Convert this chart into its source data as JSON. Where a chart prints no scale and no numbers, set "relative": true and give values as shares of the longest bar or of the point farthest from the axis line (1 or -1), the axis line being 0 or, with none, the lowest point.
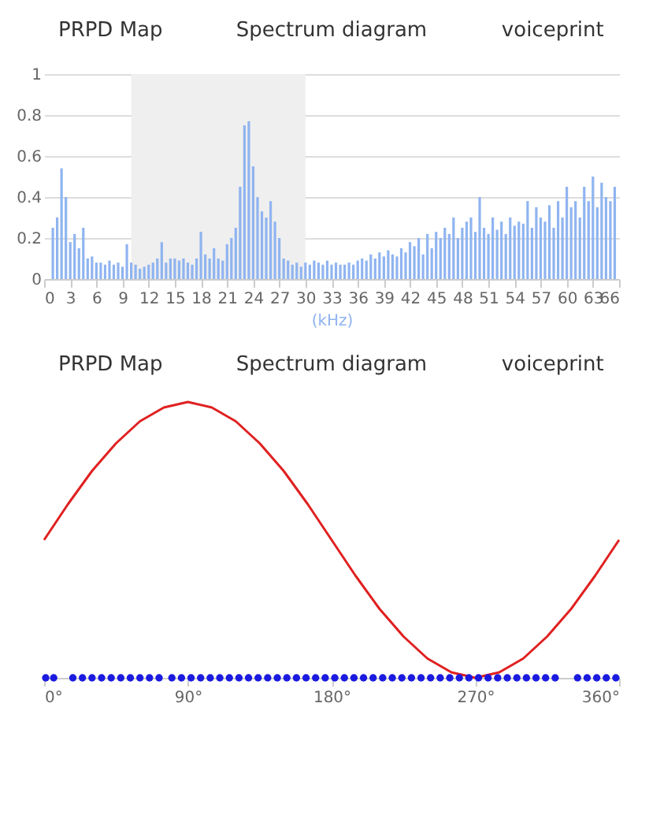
{
  "chart_data": [
    {
      "type": "bar",
      "annotations": [
        "PRPD Map",
        "Spectrum diagram",
        "voiceprint"
      ],
      "xlabel": "(kHz)",
      "x": [
        1.0,
        1.5,
        2.0,
        2.5,
        3.0,
        3.5,
        4.0,
        4.5,
        5.0,
        5.5,
        6.0,
        6.5,
        7.0,
        7.5,
        8.0,
        8.5,
        9.0,
        9.5,
        10.0,
        10.5,
        11.0,
        11.5,
        12.0,
        12.5,
        13.0,
        13.5,
        14.0,
        14.5,
        15.0,
        15.5,
        16.0,
        16.5,
        17.0,
        17.5,
        18.0,
        18.5,
        19.0,
        19.5,
        20.0,
        20.5,
        21.0,
        21.5,
        22.0,
        22.5,
        23.0,
        23.5,
        24.0,
        24.5,
        25.0,
        25.5,
        26.0,
        26.5,
        27.0,
        27.5,
        28.0,
        28.5,
        29.0,
        29.5,
        30.0,
        30.5,
        31.0,
        31.5,
        32.0,
        32.5,
        33.0,
        33.5,
        34.0,
        34.5,
        35.0,
        35.5,
        36.0,
        36.5,
        37.0,
        37.5,
        38.0,
        38.5,
        39.0,
        39.5,
        40.0,
        40.5,
        41.0,
        41.5,
        42.0,
        42.5,
        43.0,
        43.5,
        44.0,
        44.5,
        45.0,
        45.5,
        46.0,
        46.5,
        47.0,
        47.5,
        48.0,
        48.5,
        49.0,
        49.5,
        50.0,
        50.5,
        51.0,
        51.5,
        52.0,
        52.5,
        53.0,
        53.5,
        54.0,
        54.5,
        55.0,
        55.5,
        56.0,
        56.5,
        57.0,
        57.5,
        58.0,
        58.5,
        59.0,
        59.5,
        60.0,
        60.5,
        61.0,
        61.5,
        62.0,
        62.5,
        63.0,
        63.5,
        64.0,
        64.5,
        65.0,
        65.5
      ],
      "values": [
        0.25,
        0.3,
        0.54,
        0.4,
        0.18,
        0.22,
        0.15,
        0.25,
        0.1,
        0.11,
        0.08,
        0.08,
        0.07,
        0.09,
        0.07,
        0.08,
        0.06,
        0.17,
        0.08,
        0.07,
        0.05,
        0.06,
        0.07,
        0.08,
        0.1,
        0.18,
        0.08,
        0.1,
        0.1,
        0.09,
        0.1,
        0.08,
        0.07,
        0.1,
        0.23,
        0.12,
        0.1,
        0.15,
        0.1,
        0.09,
        0.17,
        0.2,
        0.25,
        0.45,
        0.75,
        0.77,
        0.55,
        0.4,
        0.33,
        0.3,
        0.38,
        0.28,
        0.2,
        0.1,
        0.09,
        0.07,
        0.08,
        0.06,
        0.08,
        0.07,
        0.09,
        0.08,
        0.07,
        0.09,
        0.07,
        0.08,
        0.07,
        0.07,
        0.08,
        0.07,
        0.09,
        0.1,
        0.09,
        0.12,
        0.1,
        0.13,
        0.11,
        0.14,
        0.12,
        0.11,
        0.15,
        0.13,
        0.18,
        0.16,
        0.2,
        0.12,
        0.22,
        0.15,
        0.23,
        0.2,
        0.25,
        0.22,
        0.3,
        0.2,
        0.25,
        0.28,
        0.3,
        0.23,
        0.4,
        0.25,
        0.22,
        0.3,
        0.24,
        0.28,
        0.22,
        0.3,
        0.26,
        0.28,
        0.27,
        0.38,
        0.25,
        0.35,
        0.3,
        0.28,
        0.36,
        0.25,
        0.38,
        0.3,
        0.45,
        0.35,
        0.38,
        0.3,
        0.45,
        0.38,
        0.5,
        0.35,
        0.47,
        0.4,
        0.38,
        0.45
      ],
      "color": "#8fb4f0",
      "xlim": [
        0,
        66
      ],
      "xticks": [
        0,
        3,
        6,
        9,
        12,
        15,
        18,
        21,
        24,
        27,
        30,
        33,
        36,
        39,
        42,
        45,
        48,
        51,
        54,
        57,
        60,
        63,
        66
      ],
      "ylim": [
        0,
        1
      ],
      "yticks": [
        0,
        0.2,
        0.4,
        0.6,
        0.8,
        1
      ],
      "grid": "y",
      "bands": [
        {
          "axis": "x",
          "from": 10,
          "to": 30,
          "color": "#efefef"
        }
      ]
    },
    {
      "type": "line",
      "annotations": [
        "PRPD Map",
        "Spectrum diagram",
        "voiceprint"
      ],
      "relative": true,
      "tick_labels": "x",
      "xlim": [
        0,
        360
      ],
      "xticks": [
        {
          "value": 0,
          "label": "0°"
        },
        {
          "value": 90,
          "label": "90°"
        },
        {
          "value": 180,
          "label": "180°"
        },
        {
          "value": 270,
          "label": "270°"
        },
        {
          "value": 360,
          "label": "360°"
        }
      ],
      "series": [
        {
          "color": "#e02020",
          "x": [
            0,
            15,
            30,
            45,
            60,
            75,
            90,
            105,
            120,
            135,
            150,
            165,
            180,
            195,
            210,
            225,
            240,
            255,
            270,
            285,
            300,
            315,
            330,
            345,
            360
          ],
          "values": [
            0.5,
            0.63,
            0.75,
            0.85,
            0.93,
            0.98,
            1,
            0.98,
            0.93,
            0.85,
            0.75,
            0.63,
            0.5,
            0.37,
            0.25,
            0.15,
            0.07,
            0.02,
            0,
            0.02,
            0.07,
            0.15,
            0.25,
            0.37,
            0.5
          ]
        },
        {
          "type": "scatter",
          "color": "#1a1ae0",
          "x": [
            1,
            6,
            18,
            24,
            30,
            36,
            42,
            48,
            54,
            60,
            66,
            72,
            80,
            86,
            92,
            98,
            104,
            110,
            116,
            122,
            128,
            134,
            140,
            146,
            152,
            158,
            164,
            170,
            176,
            182,
            188,
            194,
            200,
            206,
            212,
            218,
            224,
            230,
            236,
            242,
            248,
            254,
            260,
            266,
            272,
            278,
            284,
            290,
            296,
            302,
            308,
            314,
            320,
            334,
            340,
            346,
            352,
            358
          ],
          "values": [
            0,
            0,
            0,
            0,
            0,
            0,
            0,
            0,
            0,
            0,
            0,
            0,
            0,
            0,
            0,
            0,
            0,
            0,
            0,
            0,
            0,
            0,
            0,
            0,
            0,
            0,
            0,
            0,
            0,
            0,
            0,
            0,
            0,
            0,
            0,
            0,
            0,
            0,
            0,
            0,
            0,
            0,
            0,
            0,
            0,
            0,
            0,
            0,
            0,
            0,
            0,
            0,
            0,
            0,
            0,
            0,
            0,
            0
          ]
        }
      ]
    }
  ]
}
